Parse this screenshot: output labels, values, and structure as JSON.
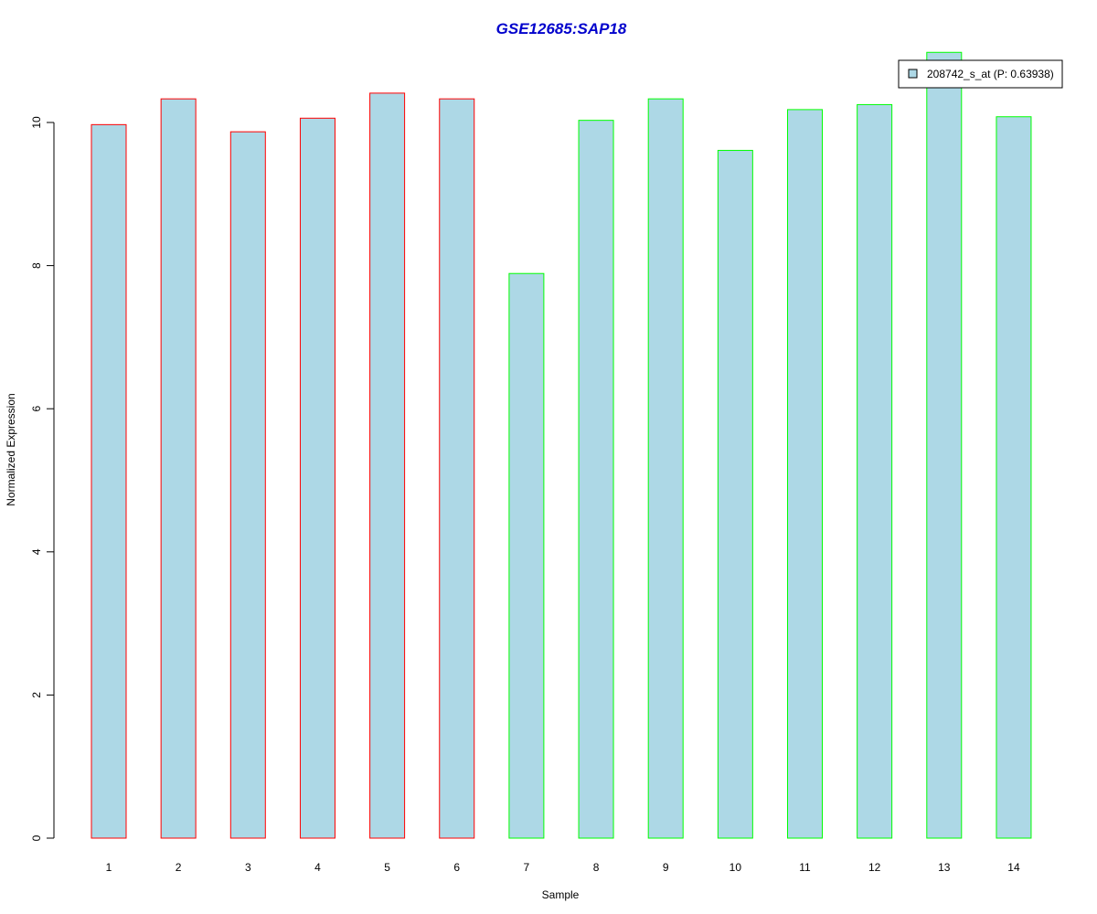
{
  "chart_data": {
    "type": "bar",
    "title": "GSE12685:SAP18",
    "xlabel": "Sample",
    "ylabel": "Normalized Expression",
    "categories": [
      "1",
      "2",
      "3",
      "4",
      "5",
      "6",
      "7",
      "8",
      "9",
      "10",
      "11",
      "12",
      "13",
      "14"
    ],
    "series": [
      {
        "name": "208742_s_at (P: 0.63938)",
        "values": [
          9.97,
          10.33,
          9.87,
          10.06,
          10.41,
          10.33,
          7.89,
          10.03,
          10.33,
          9.61,
          10.18,
          10.25,
          10.98,
          10.08
        ]
      }
    ],
    "ylim": [
      0,
      10.98
    ],
    "yticks": [
      0,
      2,
      4,
      6,
      8,
      10
    ],
    "grid": false,
    "legend_position": "top-right",
    "colors": {
      "title": "#0000CC",
      "bar_fill": "#ADD8E6",
      "group_a_border": "#FF0000",
      "group_b_border": "#00FF00",
      "axis": "#000000"
    },
    "bar_border_groups": [
      "a",
      "a",
      "a",
      "a",
      "a",
      "a",
      "b",
      "b",
      "b",
      "b",
      "b",
      "b",
      "b",
      "b"
    ]
  }
}
